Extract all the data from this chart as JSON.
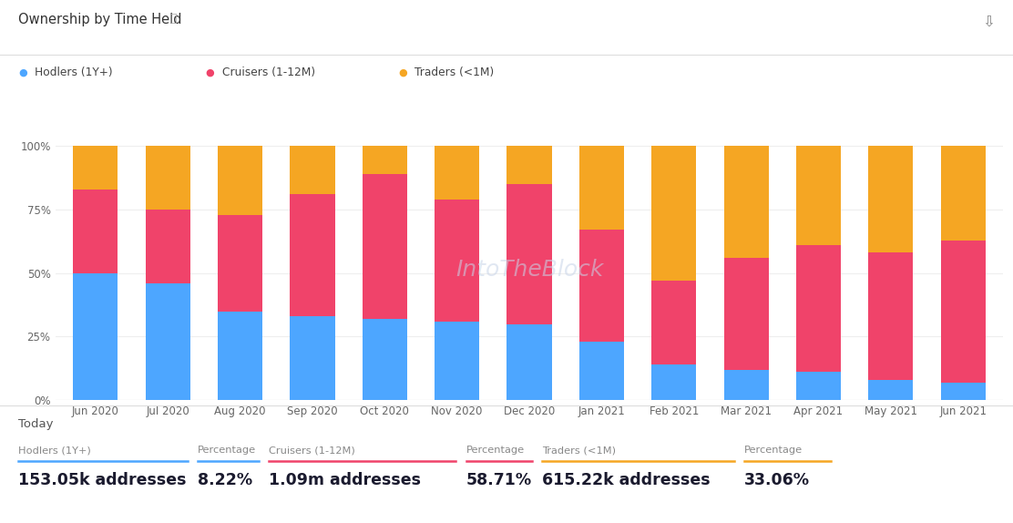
{
  "title": "Ownership by Time Held",
  "categories": [
    "Jun 2020",
    "Jul 2020",
    "Aug 2020",
    "Sep 2020",
    "Oct 2020",
    "Nov 2020",
    "Dec 2020",
    "Jan 2021",
    "Feb 2021",
    "Mar 2021",
    "Apr 2021",
    "May 2021",
    "Jun 2021"
  ],
  "hodlers": [
    50,
    46,
    35,
    33,
    32,
    31,
    30,
    23,
    14,
    12,
    11,
    8,
    7
  ],
  "cruisers": [
    33,
    29,
    38,
    48,
    57,
    48,
    55,
    44,
    33,
    44,
    50,
    50,
    56
  ],
  "traders": [
    17,
    25,
    27,
    19,
    11,
    21,
    15,
    33,
    53,
    44,
    39,
    42,
    37
  ],
  "hodlers_color": "#4da6ff",
  "cruisers_color": "#f0436a",
  "traders_color": "#f5a623",
  "background_color": "#ffffff",
  "grid_color": "#eeeeee",
  "yticks": [
    0,
    25,
    50,
    75,
    100
  ],
  "ytick_labels": [
    "0%",
    "25%",
    "50%",
    "75%",
    "100%"
  ],
  "legend_labels": [
    "Hodlers (1Y+)",
    "Cruisers (1-12M)",
    "Traders (<1M)"
  ],
  "today_label": "Today",
  "hodlers_addr": "153.05k addresses",
  "hodlers_pct": "8.22%",
  "cruisers_addr": "1.09m addresses",
  "cruisers_pct": "58.71%",
  "traders_addr": "615.22k addresses",
  "traders_pct": "33.06%",
  "col_label_hodlers": "Hodlers (1Y+)",
  "col_label_percentage": "Percentage",
  "col_label_cruisers": "Cruisers (1-12M)",
  "col_label_traders": "Traders (<1M)"
}
